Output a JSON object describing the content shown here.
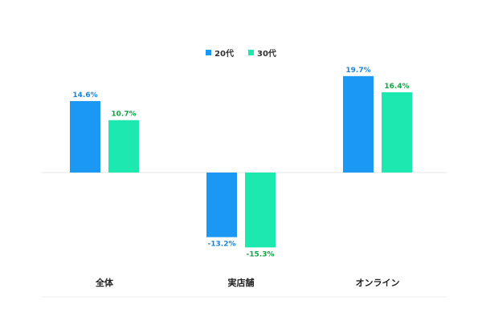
{
  "chart_data": {
    "type": "bar",
    "categories": [
      "全体",
      "実店舗",
      "オンライン"
    ],
    "series": [
      {
        "name": "20代",
        "values": [
          14.6,
          -13.2,
          19.7
        ],
        "labels": [
          "14.6%",
          "-13.2%",
          "19.7%"
        ],
        "color": "#1a98f4",
        "label_color": "#1a86e0"
      },
      {
        "name": "30代",
        "values": [
          10.7,
          -15.3,
          16.4
        ],
        "labels": [
          "10.7%",
          "-15.3%",
          "16.4%"
        ],
        "color": "#1de8b0",
        "label_color": "#10a845"
      }
    ],
    "ylim": [
      -17,
      22
    ],
    "grid": false,
    "legend_position": "top-center"
  }
}
